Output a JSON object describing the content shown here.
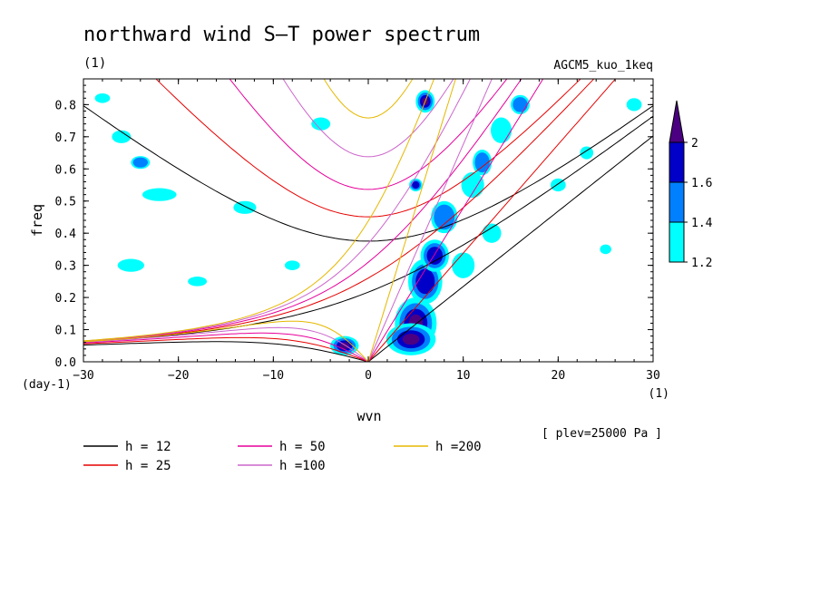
{
  "chart_data": {
    "type": "heatmap",
    "title": "northward wind S–T power spectrum",
    "title_unit": "(1)",
    "dataset_label": "AGCM5_kuo_1keq",
    "xlabel": "wvn",
    "x_unit": "(1)",
    "ylabel": "freq",
    "y_unit": "(day-1)",
    "xlim": [
      -30,
      30
    ],
    "ylim": [
      0,
      0.88
    ],
    "x_ticks": [
      -30,
      -20,
      -10,
      0,
      10,
      20,
      30
    ],
    "x_tick_labels": [
      "−30",
      "−20",
      "−10",
      "0",
      "10",
      "20",
      "30"
    ],
    "y_ticks": [
      0,
      0.1,
      0.2,
      0.3,
      0.4,
      0.5,
      0.6,
      0.7,
      0.8
    ],
    "y_tick_labels": [
      "0.0",
      "0.1",
      "0.2",
      "0.3",
      "0.4",
      "0.5",
      "0.6",
      "0.7",
      "0.8"
    ],
    "level_annotation": "[ plev=25000 Pa ]",
    "colorbar": {
      "levels": [
        1.2,
        1.4,
        1.6,
        2
      ],
      "labels": [
        "1.2",
        "1.4",
        "1.6",
        "2"
      ],
      "colors": [
        "#00ffff",
        "#0080ff",
        "#0000c8",
        "#4b0082"
      ]
    },
    "dispersion_curves": [
      {
        "label": "h = 12",
        "h": 12,
        "color": "#000000"
      },
      {
        "label": "h = 25",
        "h": 25,
        "color": "#e60000"
      },
      {
        "label": "h = 50",
        "h": 50,
        "color": "#e6009a"
      },
      {
        "label": "h =100",
        "h": 100,
        "color": "#cc66cc"
      },
      {
        "label": "h =200",
        "h": 200,
        "color": "#e6b800"
      }
    ],
    "blobs": [
      {
        "k": 5,
        "f": 0.12,
        "rk": 2.2,
        "rf": 0.08,
        "level": 3
      },
      {
        "k": 6,
        "f": 0.25,
        "rk": 1.8,
        "rf": 0.07,
        "level": 2
      },
      {
        "k": 7,
        "f": 0.33,
        "rk": 1.5,
        "rf": 0.05,
        "level": 2
      },
      {
        "k": 8,
        "f": 0.45,
        "rk": 1.4,
        "rf": 0.05,
        "level": 1
      },
      {
        "k": 6,
        "f": 0.81,
        "rk": 1.0,
        "rf": 0.035,
        "level": 3
      },
      {
        "k": -2.5,
        "f": 0.05,
        "rk": 1.5,
        "rf": 0.03,
        "level": 3
      },
      {
        "k": 4.5,
        "f": 0.07,
        "rk": 2.6,
        "rf": 0.05,
        "level": 3
      },
      {
        "k": 11,
        "f": 0.55,
        "rk": 1.2,
        "rf": 0.04,
        "level": 0
      },
      {
        "k": 12,
        "f": 0.62,
        "rk": 1.0,
        "rf": 0.04,
        "level": 1
      },
      {
        "k": 14,
        "f": 0.72,
        "rk": 1.1,
        "rf": 0.04,
        "level": 0
      },
      {
        "k": 16,
        "f": 0.8,
        "rk": 1.0,
        "rf": 0.03,
        "level": 1
      },
      {
        "k": 10,
        "f": 0.3,
        "rk": 1.2,
        "rf": 0.04,
        "level": 0
      },
      {
        "k": 13,
        "f": 0.4,
        "rk": 1.0,
        "rf": 0.03,
        "level": 0
      },
      {
        "k": -24,
        "f": 0.62,
        "rk": 1.0,
        "rf": 0.02,
        "level": 1
      },
      {
        "k": -26,
        "f": 0.7,
        "rk": 1.0,
        "rf": 0.02,
        "level": 0
      },
      {
        "k": -22,
        "f": 0.52,
        "rk": 1.8,
        "rf": 0.02,
        "level": 0
      },
      {
        "k": -13,
        "f": 0.48,
        "rk": 1.2,
        "rf": 0.02,
        "level": 0
      },
      {
        "k": -18,
        "f": 0.25,
        "rk": 1.0,
        "rf": 0.015,
        "level": 0
      },
      {
        "k": -25,
        "f": 0.3,
        "rk": 1.4,
        "rf": 0.02,
        "level": 0
      },
      {
        "k": -5,
        "f": 0.74,
        "rk": 1.0,
        "rf": 0.02,
        "level": 0
      },
      {
        "k": 5,
        "f": 0.55,
        "rk": 0.7,
        "rf": 0.02,
        "level": 2
      },
      {
        "k": 20,
        "f": 0.55,
        "rk": 0.8,
        "rf": 0.02,
        "level": 0
      },
      {
        "k": 25,
        "f": 0.35,
        "rk": 0.6,
        "rf": 0.015,
        "level": 0
      },
      {
        "k": 28,
        "f": 0.8,
        "rk": 0.8,
        "rf": 0.02,
        "level": 0
      },
      {
        "k": -28,
        "f": 0.82,
        "rk": 0.8,
        "rf": 0.015,
        "level": 0
      },
      {
        "k": -8,
        "f": 0.3,
        "rk": 0.8,
        "rf": 0.015,
        "level": 0
      },
      {
        "k": 23,
        "f": 0.65,
        "rk": 0.7,
        "rf": 0.02,
        "level": 0
      }
    ]
  }
}
